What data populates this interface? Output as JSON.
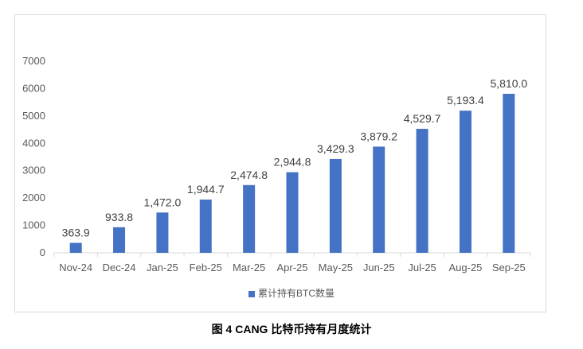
{
  "chart_data": {
    "type": "bar",
    "categories": [
      "Nov-24",
      "Dec-24",
      "Jan-25",
      "Feb-25",
      "Mar-25",
      "Apr-25",
      "May-25",
      "Jun-25",
      "Jul-25",
      "Aug-25",
      "Sep-25"
    ],
    "series": [
      {
        "name": "累计持有BTC数量",
        "values": [
          363.9,
          933.8,
          1472.0,
          1944.7,
          2474.8,
          2944.8,
          3429.3,
          3879.2,
          4529.7,
          5193.4,
          5810.0
        ],
        "color": "#4472c4"
      }
    ],
    "data_labels": [
      "363.9",
      "933.8",
      "1,472.0",
      "1,944.7",
      "2,474.8",
      "2,944.8",
      "3,429.3",
      "3,879.2",
      "4,529.7",
      "5,193.4",
      "5,810.0"
    ],
    "ylim": [
      0,
      7000
    ],
    "yticks": [
      "0",
      "1000",
      "2000",
      "3000",
      "4000",
      "5000",
      "6000",
      "7000"
    ],
    "grid": false,
    "legend": "bottom"
  },
  "caption": "图 4 CANG 比特币持有月度统计"
}
